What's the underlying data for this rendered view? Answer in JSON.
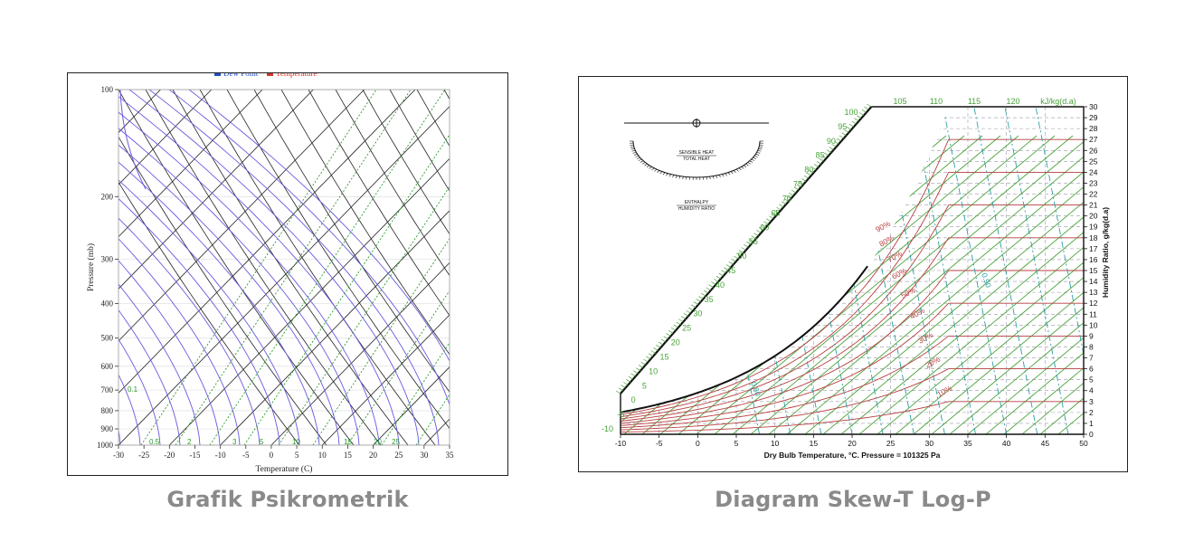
{
  "captions": {
    "left": "Grafik Psikrometrik",
    "right": "Diagram Skew-T Log-P"
  },
  "left_chart": {
    "legend": [
      {
        "label": "Dew Point",
        "color": "#1f4fbf"
      },
      {
        "label": "Temperature",
        "color": "#d03a2a"
      }
    ],
    "ylabel": "Pressure (mb)",
    "xlabel": "Temperature (C)",
    "pressure_ticks": [
      100,
      200,
      300,
      400,
      500,
      600,
      700,
      800,
      900,
      1000
    ],
    "temperature_ticks": [
      -30,
      -25,
      -20,
      -15,
      -10,
      -5,
      0,
      5,
      10,
      15,
      20,
      25,
      30,
      35
    ],
    "mixing_ratio_labels": [
      "0.1",
      "0.5",
      "2",
      "3",
      "5",
      "10",
      "15",
      "20",
      "25"
    ],
    "colors": {
      "isotherm": "#222222",
      "dry_adiabat": "#222222",
      "moist_adiabat": "#6a5ae0",
      "mixing_ratio": "#2e9a2e"
    }
  },
  "right_chart": {
    "xlabel": "Dry Bulb Temperature, °C. Pressure = 101325 Pa",
    "ylabel": "Humidity Ratio, g/kg(d.a)",
    "temperature_ticks": [
      -10,
      -5,
      0,
      5,
      10,
      15,
      20,
      25,
      30,
      35,
      40,
      45,
      50
    ],
    "humidity_ticks": [
      0,
      1,
      2,
      3,
      4,
      5,
      6,
      7,
      8,
      9,
      10,
      11,
      12,
      13,
      14,
      15,
      16,
      17,
      18,
      19,
      20,
      21,
      22,
      23,
      24,
      25,
      26,
      27,
      28,
      29,
      30
    ],
    "enthalpy_scale": [
      "-10",
      "-5",
      "0",
      "5",
      "10",
      "15",
      "20",
      "25",
      "30",
      "35",
      "40",
      "45",
      "50",
      "55",
      "60",
      "65",
      "70",
      "75",
      "80",
      "85",
      "90",
      "95",
      "100"
    ],
    "enthalpy_top": [
      "105",
      "110",
      "115",
      "120"
    ],
    "enthalpy_unit": "kJ/kg(d.a)",
    "rh_labels": [
      "90%",
      "80%",
      "70%",
      "60%",
      "50%",
      "40%",
      "30%",
      "20%",
      "10%"
    ],
    "volume_labels": [
      "0.90",
      "0.80"
    ],
    "protractor": {
      "sensible_label": "SENSIBLE HEAT",
      "total_label": "TOTAL HEAT",
      "enthalpy_label": "ENTHALPY",
      "humidity_label": "HUMIDITY RATIO"
    },
    "colors": {
      "enthalpy": "#4aa33a",
      "rh": "#b84040",
      "volume": "#2aa0a0",
      "grid": "#9999aa"
    }
  }
}
